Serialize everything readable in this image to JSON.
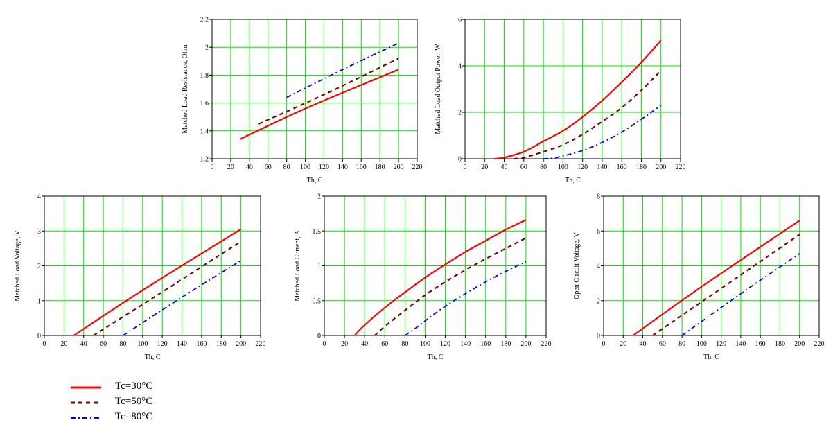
{
  "style": {
    "grid_color": "#00e600",
    "axis_color": "#000000",
    "background": "#ffffff"
  },
  "legend": {
    "items": [
      {
        "label": "Tc=30°C",
        "color": "#ff0000",
        "dash": "solid"
      },
      {
        "label": "Tc=50°C",
        "color": "#800000",
        "dash": "dashed"
      },
      {
        "label": "Tc=80°C",
        "color": "#0000ff",
        "dash": "dash-dot"
      }
    ]
  },
  "chart_data": [
    {
      "type": "line",
      "xlabel": "Th, C",
      "ylabel": "Matched Load Resistance, Ohm",
      "xlim": [
        0,
        220
      ],
      "ylim": [
        1.2,
        2.2
      ],
      "xticks": [
        0,
        20,
        40,
        60,
        80,
        100,
        120,
        140,
        160,
        180,
        200,
        220
      ],
      "yticks": [
        1.2,
        1.4,
        1.6,
        1.8,
        2,
        2.2
      ],
      "yticklabels": [
        "1.2",
        "1.4",
        "1.6",
        "1.8",
        "2",
        "2.2"
      ],
      "grid": true,
      "series": [
        {
          "name": "Tc=30°C",
          "x": [
            30,
            100,
            200
          ],
          "y": [
            1.34,
            1.56,
            1.84
          ]
        },
        {
          "name": "Tc=50°C",
          "x": [
            50,
            120,
            200
          ],
          "y": [
            1.45,
            1.66,
            1.92
          ]
        },
        {
          "name": "Tc=80°C",
          "x": [
            80,
            140,
            200
          ],
          "y": [
            1.64,
            1.84,
            2.03
          ]
        }
      ]
    },
    {
      "type": "line",
      "xlabel": "Th, C",
      "ylabel": "Matched Load Output Power, W",
      "xlim": [
        0,
        220
      ],
      "ylim": [
        0,
        6
      ],
      "xticks": [
        0,
        20,
        40,
        60,
        80,
        100,
        120,
        140,
        160,
        180,
        200,
        220
      ],
      "yticks": [
        0,
        2,
        4,
        6
      ],
      "yticklabels": [
        "0",
        "2",
        "4",
        "6"
      ],
      "grid": true,
      "series": [
        {
          "name": "Tc=30°C",
          "x": [
            30,
            40,
            60,
            80,
            100,
            120,
            140,
            160,
            180,
            200
          ],
          "y": [
            0,
            0.05,
            0.3,
            0.75,
            1.2,
            1.8,
            2.5,
            3.3,
            4.15,
            5.1
          ]
        },
        {
          "name": "Tc=50°C",
          "x": [
            50,
            60,
            80,
            100,
            120,
            140,
            160,
            180,
            200
          ],
          "y": [
            0,
            0.05,
            0.3,
            0.6,
            1.05,
            1.6,
            2.2,
            2.95,
            3.8
          ]
        },
        {
          "name": "Tc=80°C",
          "x": [
            80,
            90,
            100,
            120,
            140,
            160,
            180,
            200
          ],
          "y": [
            0,
            0.03,
            0.12,
            0.35,
            0.7,
            1.15,
            1.7,
            2.3
          ]
        }
      ]
    },
    {
      "type": "line",
      "xlabel": "Th, C",
      "ylabel": "Matched Load Voltage, V",
      "xlim": [
        0,
        220
      ],
      "ylim": [
        0,
        4
      ],
      "xticks": [
        0,
        20,
        40,
        60,
        80,
        100,
        120,
        140,
        160,
        180,
        200,
        220
      ],
      "yticks": [
        0,
        1,
        2,
        3,
        4
      ],
      "yticklabels": [
        "0",
        "1",
        "2",
        "3",
        "4"
      ],
      "grid": true,
      "series": [
        {
          "name": "Tc=30°C",
          "x": [
            30,
            100,
            200
          ],
          "y": [
            0,
            1.3,
            3.05
          ]
        },
        {
          "name": "Tc=50°C",
          "x": [
            50,
            120,
            200
          ],
          "y": [
            0,
            1.25,
            2.7
          ]
        },
        {
          "name": "Tc=80°C",
          "x": [
            80,
            140,
            200
          ],
          "y": [
            0,
            1.1,
            2.15
          ]
        }
      ]
    },
    {
      "type": "line",
      "xlabel": "Th, C",
      "ylabel": "Matched Load Current, A",
      "xlim": [
        0,
        220
      ],
      "ylim": [
        0,
        2
      ],
      "xticks": [
        0,
        20,
        40,
        60,
        80,
        100,
        120,
        140,
        160,
        180,
        200,
        220
      ],
      "yticks": [
        0,
        0.5,
        1,
        1.5,
        2
      ],
      "yticklabels": [
        "0",
        "0.5",
        "1",
        "1.5",
        "2"
      ],
      "grid": true,
      "series": [
        {
          "name": "Tc=30°C",
          "x": [
            30,
            40,
            60,
            80,
            100,
            120,
            140,
            160,
            180,
            200
          ],
          "y": [
            0,
            0.15,
            0.4,
            0.62,
            0.83,
            1.02,
            1.2,
            1.36,
            1.52,
            1.66
          ]
        },
        {
          "name": "Tc=50°C",
          "x": [
            50,
            60,
            80,
            100,
            120,
            140,
            160,
            180,
            200
          ],
          "y": [
            0,
            0.13,
            0.36,
            0.58,
            0.77,
            0.94,
            1.1,
            1.25,
            1.4
          ]
        },
        {
          "name": "Tc=80°C",
          "x": [
            80,
            90,
            100,
            120,
            140,
            160,
            180,
            200
          ],
          "y": [
            0,
            0.1,
            0.21,
            0.42,
            0.6,
            0.77,
            0.92,
            1.06
          ]
        }
      ]
    },
    {
      "type": "line",
      "xlabel": "Th, C",
      "ylabel": "Open Circuit Voltage, V",
      "xlim": [
        0,
        220
      ],
      "ylim": [
        0,
        8
      ],
      "xticks": [
        0,
        20,
        40,
        60,
        80,
        100,
        120,
        140,
        160,
        180,
        200,
        220
      ],
      "yticks": [
        0,
        2,
        4,
        6,
        8
      ],
      "yticklabels": [
        "0",
        "2",
        "4",
        "6",
        "8"
      ],
      "grid": true,
      "series": [
        {
          "name": "Tc=30°C",
          "x": [
            30,
            100,
            200
          ],
          "y": [
            0,
            2.8,
            6.6
          ]
        },
        {
          "name": "Tc=50°C",
          "x": [
            50,
            120,
            200
          ],
          "y": [
            0,
            2.7,
            5.8
          ]
        },
        {
          "name": "Tc=80°C",
          "x": [
            80,
            140,
            200
          ],
          "y": [
            0,
            2.4,
            4.7
          ]
        }
      ]
    }
  ]
}
